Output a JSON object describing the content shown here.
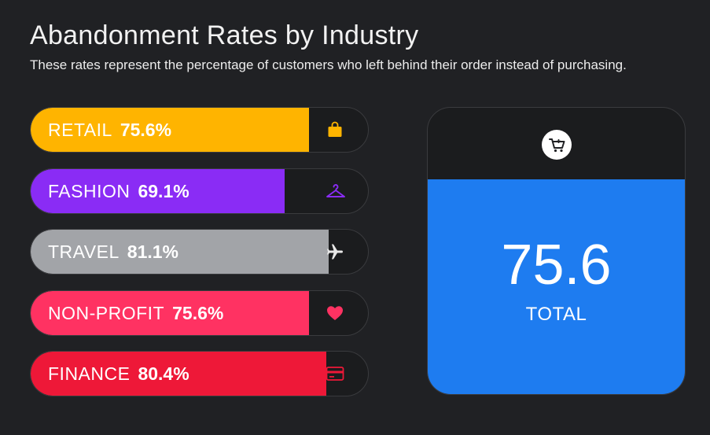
{
  "header": {
    "title": "Abandonment Rates by Industry",
    "subtitle": "These rates represent the percentage of customers who left behind their order instead of purchasing."
  },
  "chart_data": {
    "type": "bar",
    "categories": [
      "RETAIL",
      "FASHION",
      "TRAVEL",
      "NON-PROFIT",
      "FINANCE"
    ],
    "values": [
      75.6,
      69.1,
      81.1,
      75.6,
      80.4
    ],
    "value_labels": [
      "75.6%",
      "69.1%",
      "81.1%",
      "75.6%",
      "80.4%"
    ],
    "colors": [
      "#ffb400",
      "#8a2cf5",
      "#a2a4a8",
      "#ff3262",
      "#ee1838"
    ],
    "icons": [
      "shopping-bag-icon",
      "hanger-icon",
      "airplane-icon",
      "heart-icon",
      "credit-card-icon"
    ],
    "orientation": "horizontal",
    "xlim": [
      0,
      100
    ],
    "title": "Abandonment Rates by Industry"
  },
  "total_card": {
    "icon": "shopping-cart-icon",
    "value": "75.6",
    "label": "TOTAL",
    "color": "#1e7cf0"
  }
}
